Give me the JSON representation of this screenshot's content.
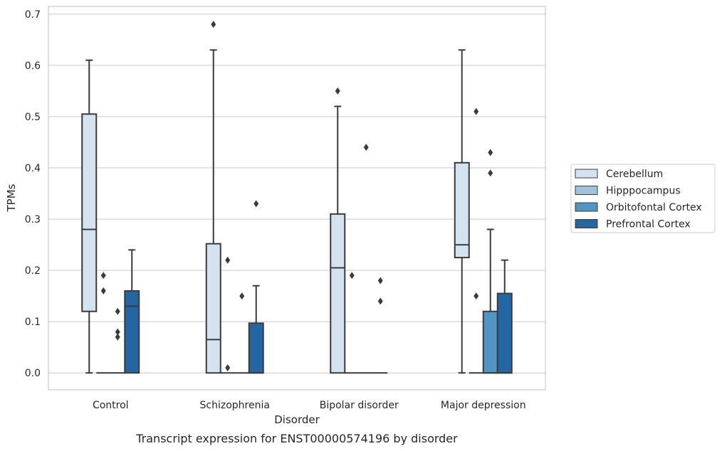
{
  "chart_data": {
    "type": "box",
    "title": "",
    "caption": "Transcript expression for ENST00000574196 by disorder",
    "xlabel": "Disorder",
    "ylabel": "TPMs",
    "ylim": [
      -0.033,
      0.715
    ],
    "yticks": [
      "0.0",
      "0.1",
      "0.2",
      "0.3",
      "0.4",
      "0.5",
      "0.6",
      "0.7"
    ],
    "grid": true,
    "legend_position": "right",
    "categories": [
      "Control",
      "Schizophrenia",
      "Bipolar disorder",
      "Major depression"
    ],
    "series": [
      {
        "name": "Cerebellum",
        "color": "#d4e3f0",
        "boxes": [
          {
            "whislo": 0.0,
            "q1": 0.12,
            "med": 0.28,
            "q3": 0.505,
            "whishi": 0.61,
            "fliers": []
          },
          {
            "whislo": 0.0,
            "q1": 0.0,
            "med": 0.065,
            "q3": 0.252,
            "whishi": 0.63,
            "fliers": [
              0.68
            ]
          },
          {
            "whislo": 0.0,
            "q1": 0.0,
            "med": 0.205,
            "q3": 0.31,
            "whishi": 0.52,
            "fliers": [
              0.55
            ]
          },
          {
            "whislo": 0.0,
            "q1": 0.225,
            "med": 0.25,
            "q3": 0.41,
            "whishi": 0.63,
            "fliers": []
          }
        ]
      },
      {
        "name": "Hipppocampus",
        "color": "#9ec3dc",
        "boxes": [
          {
            "whislo": 0.0,
            "q1": 0.0,
            "med": 0.0,
            "q3": 0.0,
            "whishi": 0.0,
            "fliers": [
              0.19,
              0.16
            ]
          },
          {
            "whislo": 0.0,
            "q1": 0.0,
            "med": 0.0,
            "q3": 0.0,
            "whishi": 0.0,
            "fliers": [
              0.22,
              0.01
            ]
          },
          {
            "whislo": 0.0,
            "q1": 0.0,
            "med": 0.0,
            "q3": 0.0,
            "whishi": 0.0,
            "fliers": [
              0.19
            ]
          },
          {
            "whislo": 0.0,
            "q1": 0.0,
            "med": 0.0,
            "q3": 0.0,
            "whishi": 0.0,
            "fliers": [
              0.51,
              0.15
            ]
          }
        ]
      },
      {
        "name": "Orbitofontal Cortex",
        "color": "#5195c4",
        "boxes": [
          {
            "whislo": 0.0,
            "q1": 0.0,
            "med": 0.0,
            "q3": 0.0,
            "whishi": 0.0,
            "fliers": [
              0.12,
              0.08,
              0.07
            ]
          },
          {
            "whislo": 0.0,
            "q1": 0.0,
            "med": 0.0,
            "q3": 0.0,
            "whishi": 0.0,
            "fliers": [
              0.15
            ]
          },
          {
            "whislo": 0.0,
            "q1": 0.0,
            "med": 0.0,
            "q3": 0.0,
            "whishi": 0.0,
            "fliers": [
              0.44
            ]
          },
          {
            "whislo": 0.0,
            "q1": 0.0,
            "med": 0.0,
            "q3": 0.12,
            "whishi": 0.28,
            "fliers": [
              0.43,
              0.39
            ]
          }
        ]
      },
      {
        "name": "Prefrontal Cortex",
        "color": "#2466a3",
        "boxes": [
          {
            "whislo": 0.0,
            "q1": 0.0,
            "med": 0.13,
            "q3": 0.16,
            "whishi": 0.24,
            "fliers": []
          },
          {
            "whislo": 0.0,
            "q1": 0.0,
            "med": 0.0,
            "q3": 0.097,
            "whishi": 0.17,
            "fliers": [
              0.33
            ]
          },
          {
            "whislo": 0.0,
            "q1": 0.0,
            "med": 0.0,
            "q3": 0.0,
            "whishi": 0.0,
            "fliers": [
              0.18,
              0.14
            ]
          },
          {
            "whislo": 0.0,
            "q1": 0.0,
            "med": 0.0,
            "q3": 0.155,
            "whishi": 0.22,
            "fliers": []
          }
        ]
      }
    ]
  }
}
